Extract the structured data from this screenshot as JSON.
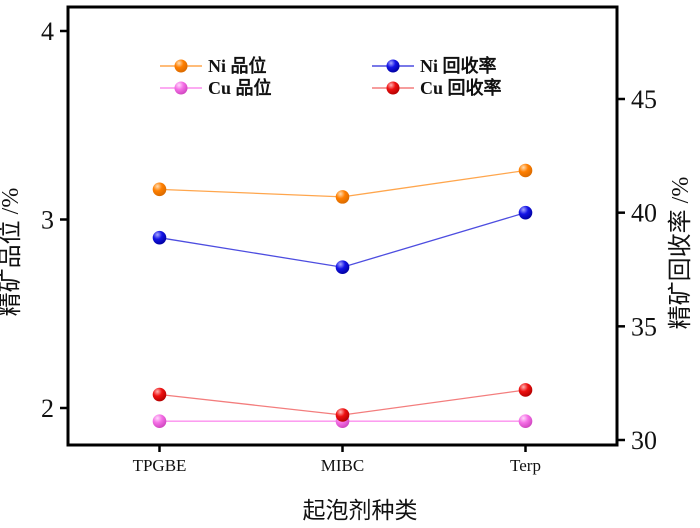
{
  "chart_data": {
    "type": "line",
    "title": "",
    "xlabel": "起泡剂种类",
    "ylabel_left": "精矿品位 /%",
    "ylabel_right": "精矿回收率 /%",
    "categories": [
      "TPGBE",
      "MIBC",
      "Terp"
    ],
    "series": [
      {
        "name": "Ni 品位",
        "axis": "left",
        "values": [
          3.16,
          3.12,
          3.26
        ],
        "marker_color": "#ff7f00",
        "line_color": "#ffa64d",
        "highlight": "#ffddb3",
        "dark": "#d96a00"
      },
      {
        "name": "Cu 品位",
        "axis": "left",
        "values": [
          1.93,
          1.93,
          1.93
        ],
        "marker_color": "#f570e6",
        "line_color": "#fb8fee",
        "highlight": "#ffd9fb",
        "dark": "#cf45bf"
      },
      {
        "name": "Ni 回收率",
        "axis": "right",
        "values": [
          38.9,
          37.6,
          40.0
        ],
        "marker_color": "#1414e6",
        "line_color": "#4d4de0",
        "highlight": "#a8a8ff",
        "dark": "#0000a0"
      },
      {
        "name": "Cu 回收率",
        "axis": "right",
        "values": [
          32.0,
          31.1,
          32.2
        ],
        "marker_color": "#ee1111",
        "line_color": "#f37d7d",
        "highlight": "#ffb3b3",
        "dark": "#b30000"
      }
    ],
    "left_axis": {
      "ticks": [
        4,
        3,
        2
      ],
      "ylim": [
        1.8,
        4.13
      ]
    },
    "right_axis": {
      "ticks": [
        45,
        40,
        35,
        30
      ],
      "ylim": [
        29.8,
        49.0
      ]
    },
    "legend_position": "top-inside",
    "grid": false
  }
}
